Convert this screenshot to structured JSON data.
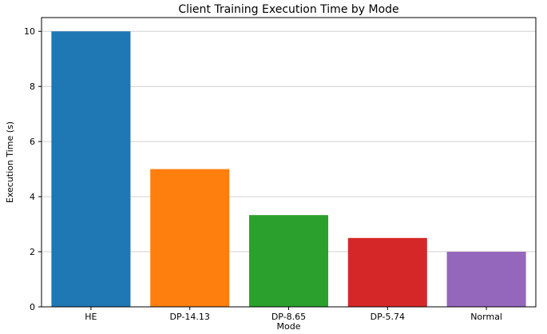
{
  "chart_data": {
    "type": "bar",
    "title": "Client Training Execution Time by Mode",
    "xlabel": "Mode",
    "ylabel": "Execution Time (s)",
    "categories": [
      "HE",
      "DP-14.13",
      "DP-8.65",
      "DP-5.74",
      "Normal"
    ],
    "values": [
      10.0,
      5.0,
      3.33,
      2.5,
      2.0
    ],
    "colors": [
      "#1f77b4",
      "#ff7f0e",
      "#2ca02c",
      "#d62728",
      "#9467bd"
    ],
    "ylim": [
      0,
      10.5
    ],
    "yticks": [
      0,
      2,
      4,
      6,
      8,
      10
    ],
    "grid": "y-axis on"
  }
}
